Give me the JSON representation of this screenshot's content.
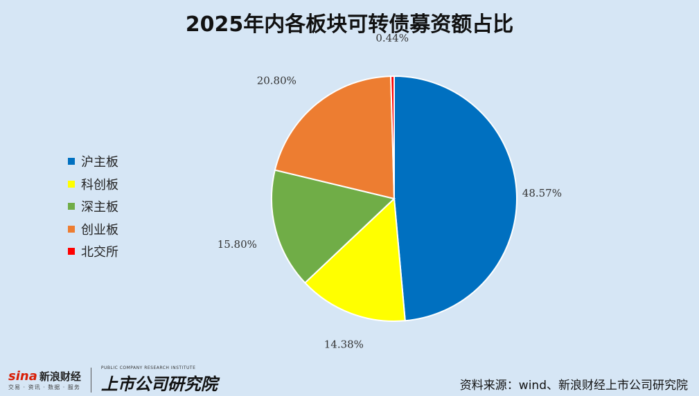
{
  "title": "2025年内各板块可转债募资额占比",
  "chart_data": {
    "type": "pie",
    "title": "2025年内各板块可转债募资额占比",
    "categories": [
      "沪主板",
      "科创板",
      "深主板",
      "创业板",
      "北交所"
    ],
    "values": [
      48.57,
      14.38,
      15.8,
      20.8,
      0.44
    ],
    "labels": [
      "48.57%",
      "14.38%",
      "15.80%",
      "20.80%",
      "0.44%"
    ],
    "colors": [
      "#0070c0",
      "#ffff00",
      "#70ad47",
      "#ed7d31",
      "#ff0000"
    ],
    "legend_position": "left"
  },
  "footer": {
    "brand": "新浪财经",
    "brand_sub": "交易 · 资讯 · 数据 · 服务",
    "institute": "上市公司研究院",
    "institute_en": "PUBLIC COMPANY RESEARCH INSTITUTE",
    "source": "资料来源：wind、新浪财经上市公司研究院"
  }
}
